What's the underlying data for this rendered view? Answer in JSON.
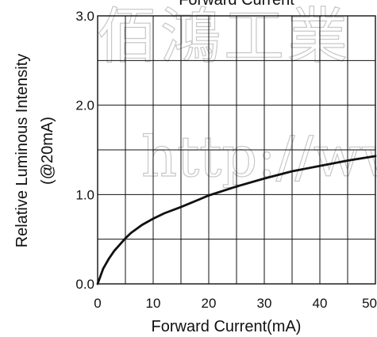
{
  "chart_data": {
    "type": "line",
    "title": "Forward Current",
    "xlabel": "Forward Current(mA)",
    "ylabel_lines": [
      "Relative Luminous Intensity",
      "(@20mA)"
    ],
    "xlim": [
      0,
      50
    ],
    "ylim": [
      0,
      3.0
    ],
    "x_ticks": [
      "0",
      "10",
      "20",
      "30",
      "40",
      "50"
    ],
    "y_ticks": [
      "0.0",
      "1.0",
      "2.0",
      "3.0"
    ],
    "grid": true,
    "grid_x_step": 5,
    "grid_y_step": 0.5,
    "series": [
      {
        "x": [
          0,
          1,
          2,
          3,
          4,
          5,
          6,
          8,
          10,
          12,
          15,
          20,
          25,
          30,
          35,
          40,
          45,
          50
        ],
        "y": [
          0.0,
          0.17,
          0.28,
          0.37,
          0.44,
          0.51,
          0.57,
          0.66,
          0.73,
          0.79,
          0.86,
          0.99,
          1.09,
          1.18,
          1.26,
          1.32,
          1.38,
          1.43
        ],
        "color": "#111111"
      }
    ]
  },
  "watermark": {
    "line1": "佰鴻工業",
    "line2": "http://ww"
  }
}
